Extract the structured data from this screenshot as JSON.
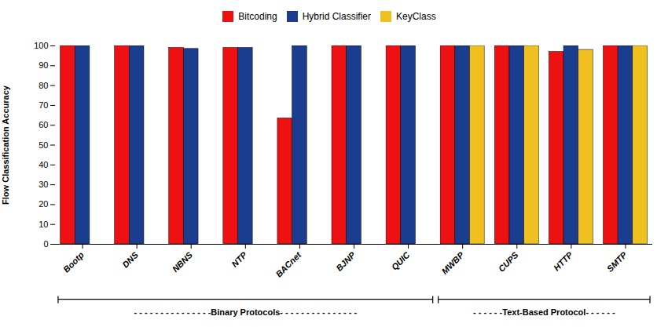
{
  "chart_data": {
    "type": "bar",
    "categories": [
      "Bootp",
      "DNS",
      "NBNS",
      "NTP",
      "BACnet",
      "BJNP",
      "QUIC",
      "MWBP",
      "CUPS",
      "HTTP",
      "SMTP"
    ],
    "series": [
      {
        "name": "Bitcoding",
        "color": "#ee1111",
        "values": [
          100,
          100,
          99,
          99,
          63.5,
          100,
          100,
          100,
          100,
          97,
          100
        ]
      },
      {
        "name": "Hybrid Classifier",
        "color": "#1a3d8f",
        "values": [
          100,
          100,
          98.5,
          99,
          100,
          100,
          100,
          100,
          100,
          100,
          100
        ]
      },
      {
        "name": "KeyClass",
        "color": "#f0c020",
        "values": [
          null,
          null,
          null,
          null,
          null,
          null,
          null,
          100,
          100,
          98,
          100
        ]
      }
    ],
    "ylabel": "Flow Classification Accuracy",
    "ylim": [
      0,
      100
    ],
    "yticks": [
      0,
      10,
      20,
      30,
      40,
      50,
      60,
      70,
      80,
      90,
      100
    ],
    "grid": false,
    "legend": "top",
    "annotations": [
      {
        "text": "- - - - - - - - - - - - - - -Binary Protocols- - - - - - - - - - - - - - -",
        "from": "Bootp",
        "to": "QUIC"
      },
      {
        "text": "- - - - - -Text-Based Protocol- - - - - -",
        "from": "MWBP",
        "to": "SMTP"
      }
    ]
  }
}
